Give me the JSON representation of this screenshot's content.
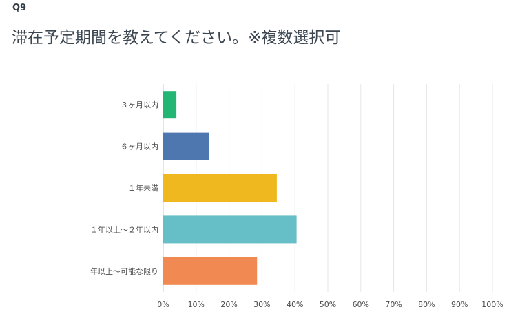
{
  "question": {
    "number": "Q9",
    "title": "滞在予定期間を教えてください。※複数選択可"
  },
  "chart_data": {
    "type": "bar",
    "orientation": "horizontal",
    "categories": [
      "３ヶ月以内",
      "６ヶ月以内",
      "１年未満",
      "１年以上〜２年以内",
      "年以上〜可能な限り"
    ],
    "values": [
      4,
      14,
      34.5,
      40.5,
      28.5
    ],
    "colors": [
      "#23b573",
      "#4e77b0",
      "#f0b81f",
      "#66bec6",
      "#f18a52"
    ],
    "xlim": [
      0,
      100
    ],
    "xticks": [
      "0%",
      "10%",
      "20%",
      "30%",
      "40%",
      "50%",
      "60%",
      "70%",
      "80%",
      "90%",
      "100%"
    ],
    "grid": true
  }
}
